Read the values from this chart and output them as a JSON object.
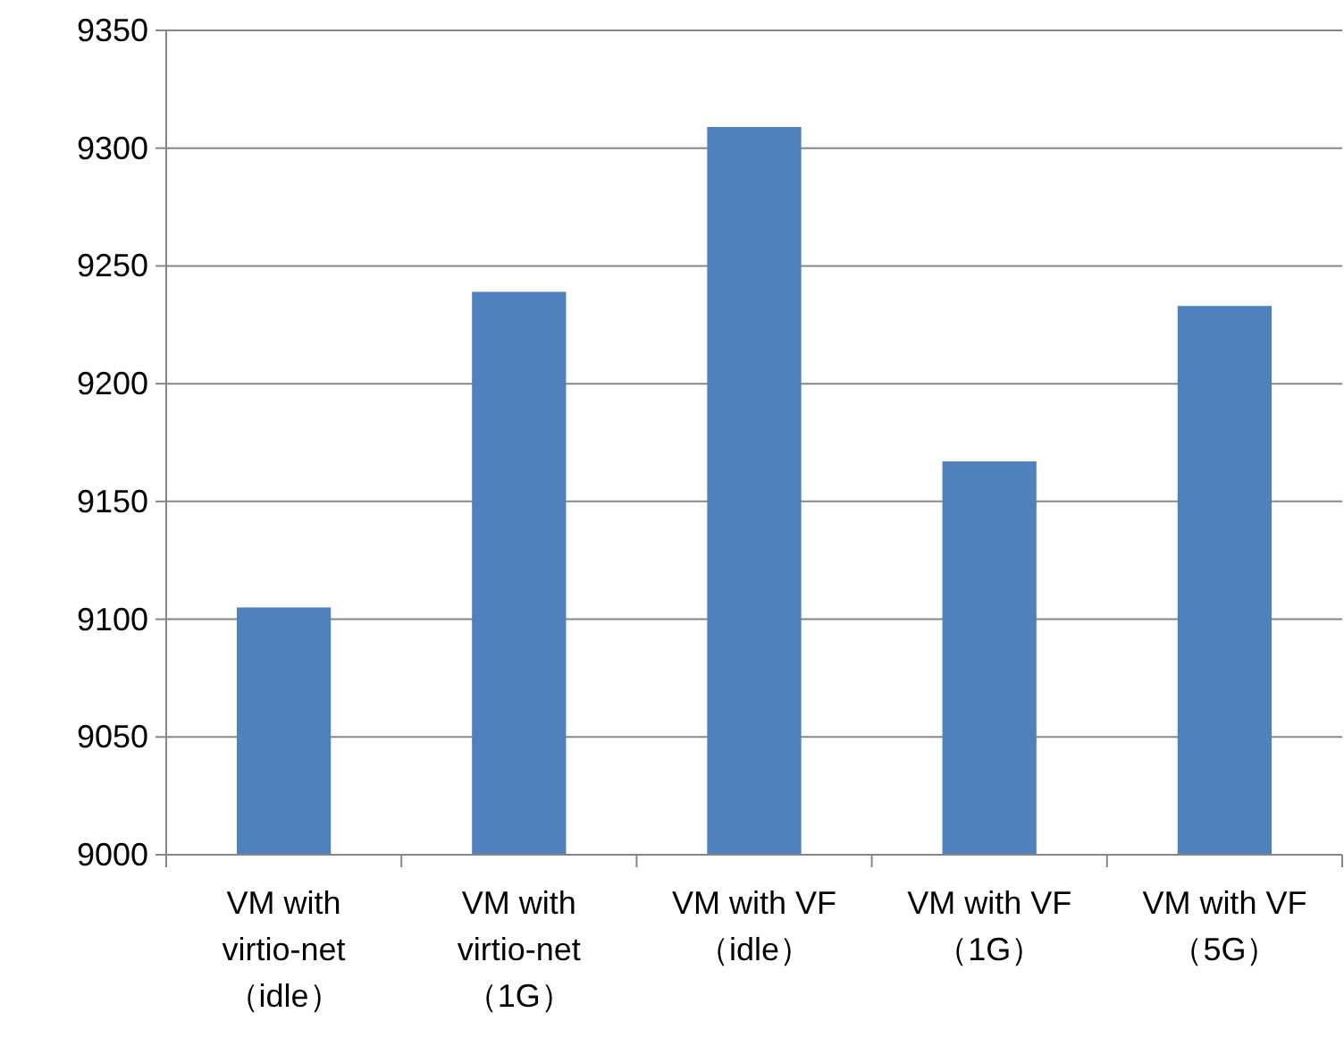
{
  "chart_data": {
    "type": "bar",
    "categories": [
      "VM with\nvirtio-net\n（idle）",
      "VM with\nvirtio-net\n（1G）",
      "VM with VF\n（idle）",
      "VM with VF\n（1G）",
      "VM with VF\n（5G）"
    ],
    "values": [
      9105,
      9239,
      9309,
      9167,
      9233
    ],
    "color": "#4f81bd",
    "ylim": [
      9000,
      9350
    ],
    "yticks": [
      9000,
      9050,
      9100,
      9150,
      9200,
      9250,
      9300,
      9350
    ],
    "grid": "y"
  }
}
